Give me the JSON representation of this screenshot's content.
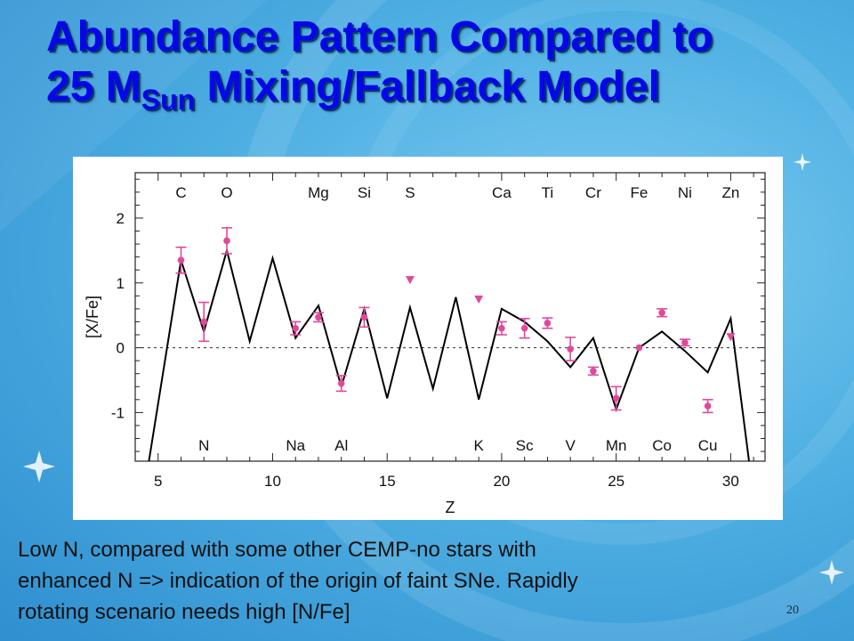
{
  "slide": {
    "title_line1": "Abundance Pattern Compared to",
    "title_line2_pre": "25 M",
    "title_line2_sub": "Sun",
    "title_line2_post": " Mixing/Fallback Model",
    "caption_line1": "Low N, compared with some other CEMP-no stars with",
    "caption_line2": "enhanced N  => indication of the origin of faint SNe. Rapidly",
    "caption_line3": "rotating scenario needs high [N/Fe]",
    "page_number": "20",
    "colors": {
      "title": "#0606e8",
      "points": "#e0499a",
      "model": "#000000",
      "background": "#4fb0e3"
    }
  },
  "chart_data": {
    "type": "line",
    "title": "",
    "xlabel": "Z",
    "ylabel": "[X/Fe]",
    "xlim": [
      4,
      31.5
    ],
    "ylim": [
      -1.75,
      2.7
    ],
    "x_ticks": [
      5,
      10,
      15,
      20,
      25,
      30
    ],
    "y_ticks": [
      -1,
      0,
      1,
      2
    ],
    "reference_line_y": 0,
    "element_labels_top": [
      {
        "z": 6,
        "label": "C"
      },
      {
        "z": 8,
        "label": "O"
      },
      {
        "z": 12,
        "label": "Mg"
      },
      {
        "z": 14,
        "label": "Si"
      },
      {
        "z": 16,
        "label": "S"
      },
      {
        "z": 20,
        "label": "Ca"
      },
      {
        "z": 22,
        "label": "Ti"
      },
      {
        "z": 24,
        "label": "Cr"
      },
      {
        "z": 26,
        "label": "Fe"
      },
      {
        "z": 28,
        "label": "Ni"
      },
      {
        "z": 30,
        "label": "Zn"
      }
    ],
    "element_labels_bottom": [
      {
        "z": 7,
        "label": "N"
      },
      {
        "z": 11,
        "label": "Na"
      },
      {
        "z": 13,
        "label": "Al"
      },
      {
        "z": 19,
        "label": "K"
      },
      {
        "z": 21,
        "label": "Sc"
      },
      {
        "z": 23,
        "label": "V"
      },
      {
        "z": 25,
        "label": "Mn"
      },
      {
        "z": 27,
        "label": "Co"
      },
      {
        "z": 29,
        "label": "Cu"
      }
    ],
    "model": {
      "x": [
        4.6,
        6,
        7,
        8,
        9,
        10,
        11,
        12,
        13,
        14,
        15,
        16,
        17,
        18,
        19,
        20,
        21,
        22,
        23,
        24,
        25,
        26,
        27,
        28,
        29,
        30,
        30.8
      ],
      "y": [
        -1.75,
        1.35,
        0.25,
        1.5,
        0.1,
        1.38,
        0.15,
        0.65,
        -0.6,
        0.6,
        -0.78,
        0.62,
        -0.63,
        0.78,
        -0.8,
        0.6,
        0.4,
        0.1,
        -0.3,
        0.15,
        -0.95,
        0.0,
        0.25,
        -0.05,
        -0.38,
        0.45,
        -1.75
      ]
    },
    "measurements": [
      {
        "z": 6,
        "value": 1.35,
        "err": 0.2
      },
      {
        "z": 7,
        "value": 0.4,
        "err": 0.3
      },
      {
        "z": 8,
        "value": 1.65,
        "err": 0.2
      },
      {
        "z": 11,
        "value": 0.3,
        "err": 0.1
      },
      {
        "z": 12,
        "value": 0.47,
        "err": 0.07
      },
      {
        "z": 13,
        "value": -0.55,
        "err": 0.12
      },
      {
        "z": 14,
        "value": 0.47,
        "err": 0.15
      },
      {
        "z": 20,
        "value": 0.3,
        "err": 0.1
      },
      {
        "z": 21,
        "value": 0.3,
        "err": 0.15
      },
      {
        "z": 22,
        "value": 0.38,
        "err": 0.08
      },
      {
        "z": 23,
        "value": -0.02,
        "err": 0.18
      },
      {
        "z": 24,
        "value": -0.36,
        "err": 0.06
      },
      {
        "z": 25,
        "value": -0.78,
        "err": 0.18
      },
      {
        "z": 26,
        "value": 0.0,
        "err": 0.0
      },
      {
        "z": 27,
        "value": 0.54,
        "err": 0.06
      },
      {
        "z": 28,
        "value": 0.08,
        "err": 0.05
      },
      {
        "z": 29,
        "value": -0.9,
        "err": 0.1
      }
    ],
    "upper_limits": [
      {
        "z": 16,
        "value": 1.05
      },
      {
        "z": 19,
        "value": 0.75
      },
      {
        "z": 30,
        "value": 0.17
      }
    ]
  }
}
